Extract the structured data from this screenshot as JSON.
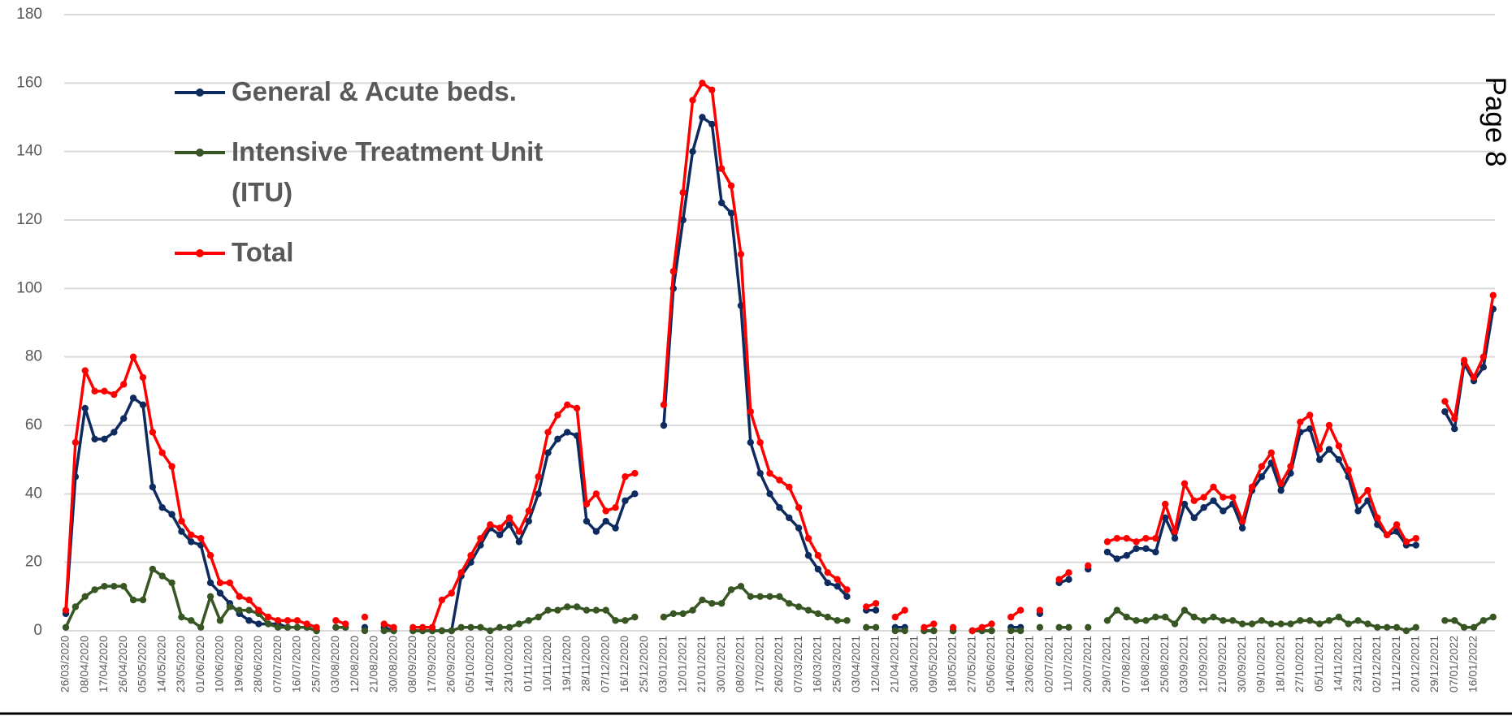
{
  "chart_data": {
    "type": "line",
    "page_label": "Page 8",
    "categories": [
      "26/03/2020",
      null,
      "08/04/2020",
      null,
      "17/04/2020",
      null,
      "26/04/2020",
      null,
      "05/05/2020",
      null,
      "14/05/2020",
      null,
      "23/05/2020",
      null,
      "01/06/2020",
      null,
      "10/06/2020",
      null,
      "19/06/2020",
      null,
      "28/06/2020",
      null,
      "07/07/2020",
      null,
      "16/07/2020",
      null,
      "25/07/2020",
      null,
      "03/08/2020",
      null,
      "12/08/2020",
      null,
      "21/08/2020",
      null,
      "30/08/2020",
      null,
      "08/09/2020",
      null,
      "17/09/2020",
      null,
      "26/09/2020",
      null,
      "05/10/2020",
      null,
      "14/10/2020",
      null,
      "23/10/2020",
      null,
      "01/11/2020",
      null,
      "10/11/2020",
      null,
      "19/11/2020",
      null,
      "28/11/2020",
      null,
      "07/12/2020",
      null,
      "16/12/2020",
      null,
      "25/12/2020",
      null,
      "03/01/2021",
      null,
      "12/01/2021",
      null,
      "21/01/2021",
      null,
      "30/01/2021",
      null,
      "08/02/2021",
      null,
      "17/02/2021",
      null,
      "26/02/2021",
      null,
      "07/03/2021",
      null,
      "16/03/2021",
      null,
      "25/03/2021",
      null,
      "03/04/2021",
      null,
      "12/04/2021",
      null,
      "21/04/2021",
      null,
      "30/04/2021",
      null,
      "09/05/2021",
      null,
      "18/05/2021",
      null,
      "27/05/2021",
      null,
      "05/06/2021",
      null,
      "14/06/2021",
      null,
      "23/06/2021",
      null,
      "02/07/2021",
      null,
      "11/07/2021",
      null,
      "20/07/2021",
      null,
      "29/07/2021",
      null,
      "07/08/2021",
      null,
      "16/08/2021",
      null,
      "25/08/2021",
      null,
      "03/09/2021",
      null,
      "12/09/2021",
      null,
      "21/09/2021",
      null,
      "30/09/2021",
      null,
      "09/10/2021",
      null,
      "18/10/2021",
      null,
      "27/10/2021",
      null,
      "05/11/2021",
      null,
      "14/11/2021",
      null,
      "23/11/2021",
      null,
      "02/12/2021",
      null,
      "11/12/2021",
      null,
      "20/12/2021",
      null,
      "29/12/2021",
      null,
      "07/01/2022",
      null,
      "16/01/2022",
      null,
      null
    ],
    "series": [
      {
        "name": "General & Acute beds.",
        "color": "#0d2b5e",
        "values": [
          5,
          45,
          65,
          56,
          56,
          58,
          62,
          68,
          66,
          42,
          36,
          34,
          29,
          26,
          25,
          14,
          11,
          8,
          5,
          3,
          2,
          2,
          2,
          1,
          1,
          1,
          0,
          null,
          1,
          1,
          null,
          1,
          null,
          1,
          0,
          null,
          0,
          0,
          0,
          0,
          0,
          16,
          20,
          25,
          30,
          28,
          31,
          26,
          32,
          40,
          52,
          56,
          58,
          57,
          32,
          29,
          32,
          30,
          38,
          40,
          null,
          null,
          60,
          100,
          120,
          140,
          150,
          148,
          125,
          122,
          95,
          55,
          46,
          40,
          36,
          33,
          30,
          22,
          18,
          14,
          13,
          10,
          null,
          6,
          6,
          null,
          1,
          1,
          null,
          0,
          0,
          null,
          0,
          null,
          0,
          0,
          0,
          null,
          1,
          1,
          null,
          5,
          null,
          14,
          15,
          null,
          18,
          null,
          23,
          21,
          22,
          24,
          24,
          23,
          33,
          27,
          37,
          33,
          36,
          38,
          35,
          37,
          30,
          41,
          45,
          49,
          41,
          46,
          58,
          59,
          50,
          53,
          50,
          45,
          35,
          38,
          31,
          28,
          29,
          25,
          25,
          null,
          null,
          64,
          59,
          78,
          73,
          77,
          94
        ]
      },
      {
        "name": "Intensive Treatment Unit (ITU)",
        "color": "#375623",
        "values": [
          1,
          7,
          10,
          12,
          13,
          13,
          13,
          9,
          9,
          18,
          16,
          14,
          4,
          3,
          1,
          10,
          3,
          7,
          6,
          6,
          5,
          2,
          1,
          1,
          1,
          1,
          0,
          null,
          1,
          1,
          null,
          0,
          null,
          0,
          0,
          null,
          0,
          0,
          0,
          0,
          0,
          1,
          1,
          1,
          0,
          1,
          1,
          2,
          3,
          4,
          6,
          6,
          7,
          7,
          6,
          6,
          6,
          3,
          3,
          4,
          null,
          null,
          4,
          5,
          5,
          6,
          9,
          8,
          8,
          12,
          13,
          10,
          10,
          10,
          10,
          8,
          7,
          6,
          5,
          4,
          3,
          3,
          null,
          1,
          1,
          null,
          0,
          0,
          null,
          0,
          0,
          null,
          0,
          null,
          0,
          0,
          0,
          null,
          0,
          0,
          null,
          1,
          null,
          1,
          1,
          null,
          1,
          null,
          3,
          6,
          4,
          3,
          3,
          4,
          4,
          2,
          6,
          4,
          3,
          4,
          3,
          3,
          2,
          2,
          3,
          2,
          2,
          2,
          3,
          3,
          2,
          3,
          4,
          2,
          3,
          2,
          1,
          1,
          1,
          0,
          1,
          null,
          null,
          3,
          3,
          1,
          1,
          3,
          4
        ]
      },
      {
        "name": "Total",
        "color": "#ff0000",
        "values": [
          6,
          55,
          76,
          70,
          70,
          69,
          72,
          80,
          74,
          58,
          52,
          48,
          32,
          28,
          27,
          22,
          14,
          14,
          10,
          9,
          6,
          4,
          3,
          3,
          3,
          2,
          1,
          null,
          3,
          2,
          null,
          4,
          null,
          2,
          1,
          null,
          1,
          1,
          1,
          9,
          11,
          17,
          22,
          27,
          31,
          30,
          33,
          29,
          35,
          45,
          58,
          63,
          66,
          65,
          37,
          40,
          35,
          36,
          45,
          46,
          null,
          null,
          66,
          105,
          128,
          155,
          160,
          158,
          135,
          130,
          110,
          64,
          55,
          46,
          44,
          42,
          36,
          27,
          22,
          17,
          15,
          12,
          null,
          7,
          8,
          null,
          4,
          6,
          null,
          1,
          2,
          null,
          1,
          null,
          0,
          1,
          2,
          null,
          4,
          6,
          null,
          6,
          null,
          15,
          17,
          null,
          19,
          null,
          26,
          27,
          27,
          26,
          27,
          27,
          37,
          29,
          43,
          38,
          39,
          42,
          39,
          39,
          32,
          42,
          48,
          52,
          43,
          48,
          61,
          63,
          53,
          60,
          54,
          47,
          38,
          41,
          33,
          28,
          31,
          26,
          27,
          null,
          null,
          67,
          62,
          79,
          74,
          80,
          98
        ]
      }
    ],
    "ylim": [
      0,
      180
    ],
    "yticks": [
      0,
      20,
      40,
      60,
      80,
      100,
      120,
      140,
      160,
      180
    ],
    "grid": true,
    "legend": "upper left"
  }
}
